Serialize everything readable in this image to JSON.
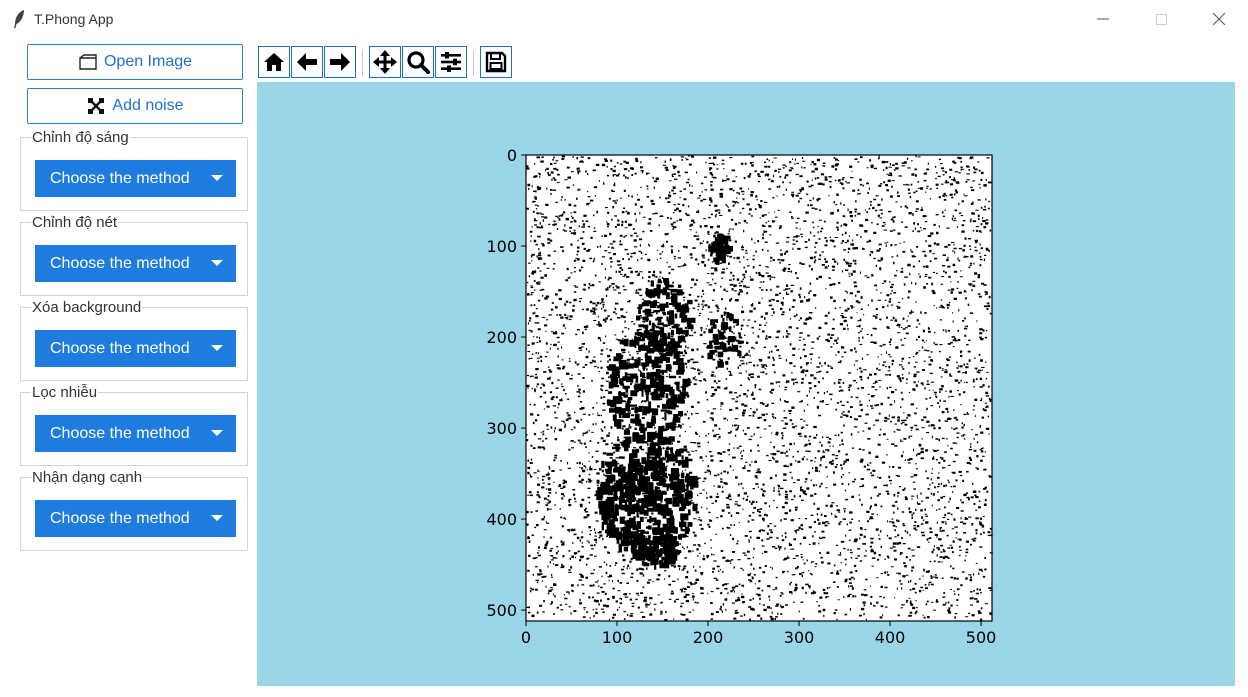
{
  "window": {
    "title": "T.Phong App",
    "icons": {
      "app": "feather-icon",
      "minimize": "minimize-icon",
      "maximize": "maximize-icon",
      "close": "close-icon"
    }
  },
  "sidebar": {
    "open_image": {
      "label": "Open Image",
      "icon": "folder-icon"
    },
    "add_noise": {
      "label": "Add noise",
      "icon": "cross-arrows-icon"
    },
    "groups": [
      {
        "label": "Chỉnh độ sáng",
        "select_value": "Choose the method"
      },
      {
        "label": "Chỉnh độ nét",
        "select_value": "Choose the method"
      },
      {
        "label": "Xóa background",
        "select_value": "Choose the method"
      },
      {
        "label": "Lọc nhiễu",
        "select_value": "Choose the method"
      },
      {
        "label": "Nhận dạng cạnh",
        "select_value": "Choose the method"
      }
    ]
  },
  "toolbar": {
    "buttons": [
      "home-icon",
      "back-arrow-icon",
      "forward-arrow-icon",
      "pan-icon",
      "zoom-icon",
      "configure-subplots-icon",
      "save-icon"
    ]
  },
  "plot": {
    "background": "#9bd5e8",
    "xlim": [
      0,
      512
    ],
    "ylim": [
      512,
      0
    ],
    "x_ticks": [
      0,
      100,
      200,
      300,
      400,
      500
    ],
    "y_ticks": [
      0,
      100,
      200,
      300,
      400,
      500
    ],
    "image": "binary edge-detected photograph (black and white)"
  }
}
